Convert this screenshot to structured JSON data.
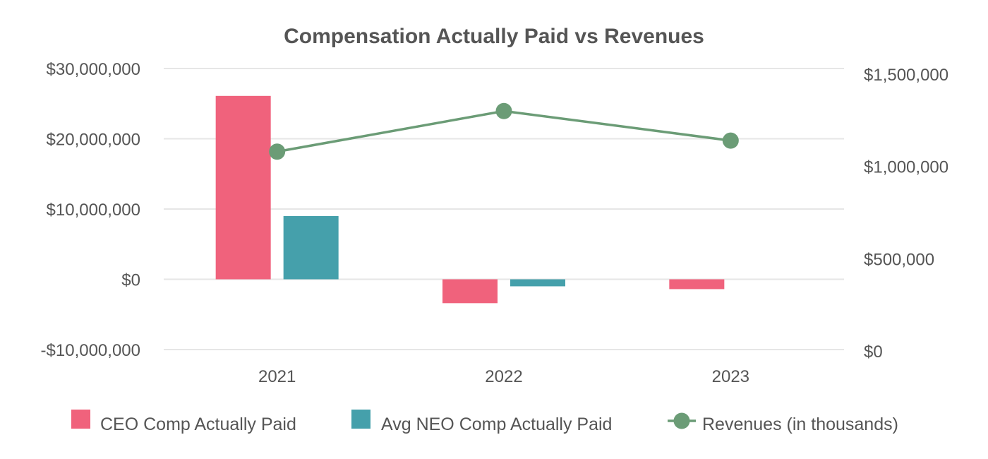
{
  "chart_data": {
    "type": "bar",
    "title": "Compensation Actually Paid vs Revenues",
    "categories": [
      "2021",
      "2022",
      "2023"
    ],
    "y_left": {
      "range": [
        -10000000,
        30000000
      ],
      "ticks": [
        30000000,
        20000000,
        10000000,
        0,
        -10000000
      ],
      "tick_labels": [
        "$30,000,000",
        "$20,000,000",
        "$10,000,000",
        "$0",
        "-$10,000,000"
      ]
    },
    "y_right": {
      "range": [
        0,
        1500000
      ],
      "ticks": [
        1500000,
        1000000,
        500000,
        0
      ],
      "tick_labels": [
        "$1,500,000",
        "$1,000,000",
        "$500,000",
        "$0"
      ]
    },
    "series": [
      {
        "name": "CEO Comp Actually Paid",
        "type": "bar",
        "axis": "left",
        "color": "#f0627c",
        "values": [
          26100000,
          -3400000,
          -1400000
        ]
      },
      {
        "name": "Avg NEO Comp Actually Paid",
        "type": "bar",
        "axis": "left",
        "color": "#45a0ab",
        "values": [
          9000000,
          -1000000,
          null
        ]
      },
      {
        "name": "Revenues (in thousands)",
        "type": "line",
        "axis": "right",
        "color": "#6b9c76",
        "values": [
          1080000,
          1300000,
          1140000
        ]
      }
    ],
    "legend_position": "bottom",
    "grid": true
  }
}
